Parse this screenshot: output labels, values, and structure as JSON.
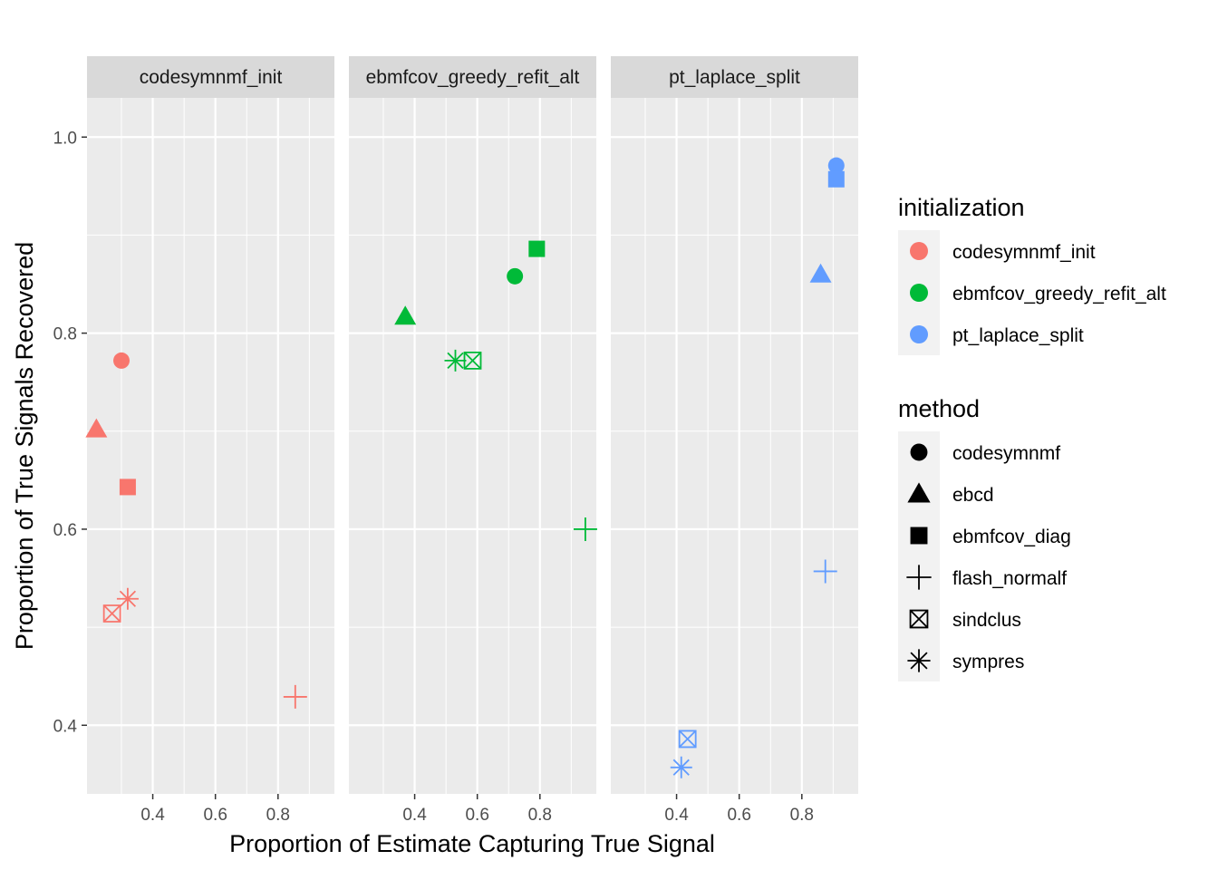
{
  "chart_data": {
    "type": "scatter",
    "xlabel": "Proportion of Estimate Capturing True Signal",
    "ylabel": "Proportion of True Signals Recovered",
    "xlim": [
      0.19,
      0.98
    ],
    "ylim": [
      0.33,
      1.04
    ],
    "x_ticks": [
      0.4,
      0.6,
      0.8
    ],
    "x_tick_labels": [
      "0.4",
      "0.6",
      "0.8"
    ],
    "y_ticks": [
      0.4,
      0.6,
      0.8,
      1.0
    ],
    "y_tick_labels": [
      "0.4",
      "0.6",
      "0.8",
      "1.0"
    ],
    "grid": true,
    "legend_position": "right",
    "facets": [
      "codesymnmf_init",
      "ebmfcov_greedy_refit_alt",
      "pt_laplace_split"
    ],
    "colors": {
      "codesymnmf_init": "#F8766D",
      "ebmfcov_greedy_refit_alt": "#00BA38",
      "pt_laplace_split": "#619CFF"
    },
    "shapes": {
      "codesymnmf": "circle",
      "ebcd": "triangle",
      "ebmfcov_diag": "square",
      "flash_normalf": "plus",
      "sindclus": "square-x",
      "sympres": "asterisk"
    },
    "points": [
      {
        "facet": "codesymnmf_init",
        "initialization": "codesymnmf_init",
        "method": "codesymnmf",
        "x": 0.3,
        "y": 0.772
      },
      {
        "facet": "codesymnmf_init",
        "initialization": "codesymnmf_init",
        "method": "ebcd",
        "x": 0.22,
        "y": 0.702
      },
      {
        "facet": "codesymnmf_init",
        "initialization": "codesymnmf_init",
        "method": "ebmfcov_diag",
        "x": 0.32,
        "y": 0.643
      },
      {
        "facet": "codesymnmf_init",
        "initialization": "codesymnmf_init",
        "method": "sympres",
        "x": 0.32,
        "y": 0.529
      },
      {
        "facet": "codesymnmf_init",
        "initialization": "codesymnmf_init",
        "method": "sindclus",
        "x": 0.27,
        "y": 0.514
      },
      {
        "facet": "codesymnmf_init",
        "initialization": "codesymnmf_init",
        "method": "flash_normalf",
        "x": 0.855,
        "y": 0.429
      },
      {
        "facet": "ebmfcov_greedy_refit_alt",
        "initialization": "ebmfcov_greedy_refit_alt",
        "method": "ebmfcov_diag",
        "x": 0.79,
        "y": 0.886
      },
      {
        "facet": "ebmfcov_greedy_refit_alt",
        "initialization": "ebmfcov_greedy_refit_alt",
        "method": "codesymnmf",
        "x": 0.72,
        "y": 0.858
      },
      {
        "facet": "ebmfcov_greedy_refit_alt",
        "initialization": "ebmfcov_greedy_refit_alt",
        "method": "ebcd",
        "x": 0.37,
        "y": 0.817
      },
      {
        "facet": "ebmfcov_greedy_refit_alt",
        "initialization": "ebmfcov_greedy_refit_alt",
        "method": "sympres",
        "x": 0.53,
        "y": 0.772
      },
      {
        "facet": "ebmfcov_greedy_refit_alt",
        "initialization": "ebmfcov_greedy_refit_alt",
        "method": "sindclus",
        "x": 0.585,
        "y": 0.772
      },
      {
        "facet": "ebmfcov_greedy_refit_alt",
        "initialization": "ebmfcov_greedy_refit_alt",
        "method": "flash_normalf",
        "x": 0.945,
        "y": 0.6
      },
      {
        "facet": "pt_laplace_split",
        "initialization": "pt_laplace_split",
        "method": "codesymnmf",
        "x": 0.91,
        "y": 0.971
      },
      {
        "facet": "pt_laplace_split",
        "initialization": "pt_laplace_split",
        "method": "ebmfcov_diag",
        "x": 0.91,
        "y": 0.957
      },
      {
        "facet": "pt_laplace_split",
        "initialization": "pt_laplace_split",
        "method": "ebcd",
        "x": 0.86,
        "y": 0.86
      },
      {
        "facet": "pt_laplace_split",
        "initialization": "pt_laplace_split",
        "method": "flash_normalf",
        "x": 0.875,
        "y": 0.557
      },
      {
        "facet": "pt_laplace_split",
        "initialization": "pt_laplace_split",
        "method": "sindclus",
        "x": 0.435,
        "y": 0.386
      },
      {
        "facet": "pt_laplace_split",
        "initialization": "pt_laplace_split",
        "method": "sympres",
        "x": 0.415,
        "y": 0.357
      }
    ],
    "legends": [
      {
        "title": "initialization",
        "kind": "color",
        "entries": [
          "codesymnmf_init",
          "ebmfcov_greedy_refit_alt",
          "pt_laplace_split"
        ]
      },
      {
        "title": "method",
        "kind": "shape",
        "entries": [
          "codesymnmf",
          "ebcd",
          "ebmfcov_diag",
          "flash_normalf",
          "sindclus",
          "sympres"
        ]
      }
    ]
  }
}
